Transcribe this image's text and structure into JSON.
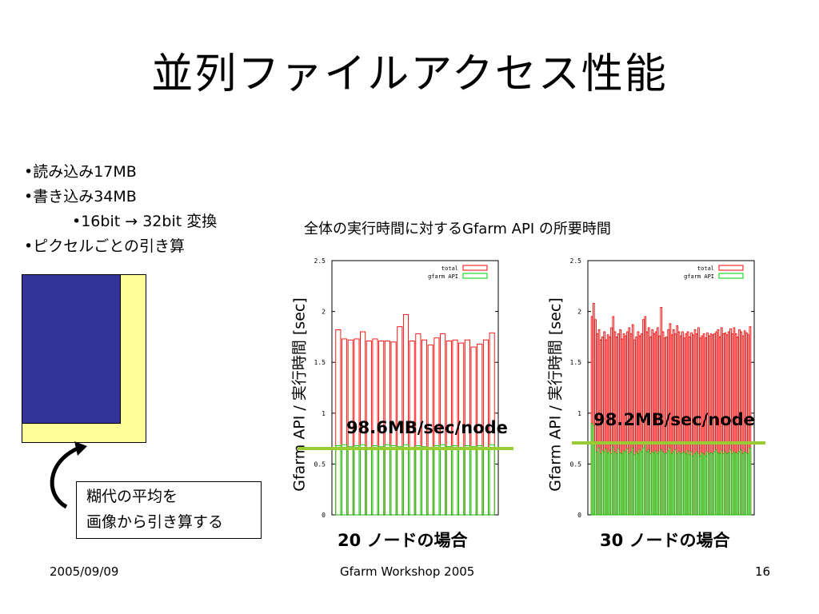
{
  "title": "並列ファイルアクセス性能",
  "bullets": {
    "item1": "•読み込み17MB",
    "item2": "•書き込み34MB",
    "item3": "•16bit",
    "item3_arrow": "→",
    "item3_rest": "32bit 変換",
    "item4": "•ピクセルごとの引き算"
  },
  "note": {
    "line1": "糊代の平均を",
    "line2": "画像から引き算する"
  },
  "chart_heading": "全体の実行時間に対するGfarm API の所要時間",
  "footer": {
    "date": "2005/09/09",
    "event": "Gfarm Workshop 2005",
    "page": "16"
  },
  "colors": {
    "total": "#ff0000",
    "gfarm_api": "#00cc00",
    "average_line": "#99cc33",
    "diagram_blue": "#333399",
    "diagram_yellow": "#ffff99"
  },
  "charts": [
    {
      "ylabel": "Gfarm API / 実行時間 [sec]",
      "throughput": "98.6MB/sec/node",
      "caption": "20 ノードの場合",
      "legend_total": "total",
      "legend_gfarm": "gfarm API",
      "ticks": [
        "0",
        "0.5",
        "1",
        "1.5",
        "2",
        "2.5"
      ]
    },
    {
      "ylabel": "Gfarm API / 実行時間 [sec]",
      "throughput": "98.2MB/sec/node",
      "caption": "30 ノードの場合",
      "legend_total": "total",
      "legend_gfarm": "gfarm API",
      "ticks": [
        "0",
        "0.5",
        "1",
        "1.5",
        "2",
        "2.5"
      ]
    }
  ],
  "chart_data": [
    {
      "type": "bar",
      "title": "20 ノードの場合",
      "ylabel": "Gfarm API / 実行時間 [sec]",
      "ylim": [
        0,
        2.5
      ],
      "legend": "top-right",
      "average_line": 0.7,
      "series": [
        {
          "name": "total",
          "values": [
            1.82,
            1.73,
            1.72,
            1.73,
            1.8,
            1.71,
            1.73,
            1.71,
            1.71,
            1.7,
            1.85,
            1.97,
            1.71,
            1.78,
            1.72,
            1.67,
            1.74,
            1.78,
            1.71,
            1.72,
            1.69,
            1.72,
            1.65,
            1.68,
            1.72,
            1.79
          ]
        },
        {
          "name": "gfarm API",
          "values": [
            0.68,
            0.69,
            0.67,
            0.68,
            0.69,
            0.66,
            0.68,
            0.67,
            0.69,
            0.68,
            0.67,
            0.69,
            0.66,
            0.68,
            0.67,
            0.66,
            0.68,
            0.69,
            0.67,
            0.68,
            0.66,
            0.68,
            0.67,
            0.68,
            0.66,
            0.69
          ]
        }
      ]
    },
    {
      "type": "bar",
      "title": "30 ノードの場合",
      "ylabel": "Gfarm API / 実行時間 [sec]",
      "ylim": [
        0,
        2.5
      ],
      "legend": "top-right",
      "average_line": 0.72,
      "series": [
        {
          "name": "total",
          "values": [
            1.95,
            2.08,
            1.92,
            1.78,
            1.82,
            1.72,
            1.75,
            1.8,
            1.72,
            1.77,
            1.75,
            1.84,
            1.95,
            1.8,
            1.75,
            1.78,
            1.82,
            1.73,
            1.78,
            1.76,
            1.8,
            1.84,
            1.78,
            1.87,
            1.72,
            1.75,
            1.8,
            1.76,
            1.78,
            1.92,
            1.95,
            1.8,
            1.84,
            1.75,
            1.82,
            1.78,
            1.8,
            1.84,
            1.76,
            2.04,
            1.8,
            1.74,
            1.75,
            1.82,
            1.88,
            1.77,
            1.82,
            1.78,
            1.86,
            1.8,
            1.76,
            1.8,
            1.74,
            1.78,
            1.8,
            1.75,
            1.79,
            1.77,
            1.82,
            1.78,
            1.84,
            1.74,
            1.76,
            1.78,
            1.74,
            1.79,
            1.76,
            1.78,
            1.77,
            1.78,
            1.8,
            1.82,
            1.75,
            1.84,
            1.78,
            1.79,
            1.77,
            1.8,
            1.83,
            1.78,
            1.84,
            1.78,
            1.75,
            1.82,
            1.8,
            1.76,
            1.81,
            1.79,
            1.77,
            1.85
          ]
        },
        {
          "name": "gfarm API",
          "values": [
            0.9,
            0.88,
            0.7,
            0.62,
            0.66,
            0.6,
            0.63,
            0.62,
            0.65,
            0.61,
            0.63,
            0.6,
            0.67,
            0.62,
            0.6,
            0.65,
            0.61,
            0.6,
            0.63,
            0.62,
            0.65,
            0.6,
            0.62,
            0.66,
            0.59,
            0.62,
            0.6,
            0.64,
            0.62,
            0.66,
            0.7,
            0.62,
            0.64,
            0.6,
            0.62,
            0.61,
            0.63,
            0.6,
            0.62,
            0.64,
            0.62,
            0.6,
            0.61,
            0.63,
            0.66,
            0.6,
            0.62,
            0.64,
            0.6,
            0.62,
            0.6,
            0.61,
            0.62,
            0.6,
            0.63,
            0.59,
            0.62,
            0.58,
            0.6,
            0.62,
            0.6,
            0.58,
            0.61,
            0.6,
            0.58,
            0.62,
            0.6,
            0.61,
            0.6,
            0.62,
            0.64,
            0.61,
            0.6,
            0.63,
            0.6,
            0.62,
            0.6,
            0.61,
            0.64,
            0.6,
            0.62,
            0.61,
            0.6,
            0.62,
            0.64,
            0.6,
            0.62,
            0.61,
            0.6,
            0.66
          ]
        }
      ]
    }
  ]
}
